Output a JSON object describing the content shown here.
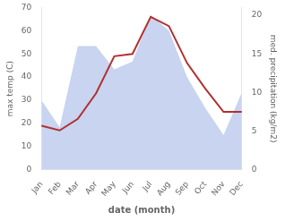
{
  "chart_data": {
    "type": "line",
    "xlabel": "date (month)",
    "ylabel": "max temp (C)",
    "y2label": "med. precipitation (kg/m2)",
    "categories": [
      "Jan",
      "Feb",
      "Mar",
      "Apr",
      "May",
      "Jun",
      "Jul",
      "Aug",
      "Sep",
      "Oct",
      "Nov",
      "Dec"
    ],
    "series": [
      {
        "type": "area",
        "color": "#c8d4f0",
        "axis": "y2",
        "values": [
          9,
          5.5,
          16,
          16,
          13,
          14,
          20,
          18,
          12,
          8,
          4.5,
          10
        ]
      },
      {
        "type": "line",
        "color": "#b03030",
        "values": [
          19,
          17,
          22,
          33,
          49,
          50,
          66,
          62,
          46,
          35,
          25,
          25
        ]
      }
    ],
    "ylim": [
      0,
      70
    ],
    "yticks": [
      0,
      10,
      20,
      30,
      40,
      50,
      60,
      70
    ],
    "y2lim": [
      0,
      21
    ],
    "y2ticks": [
      0,
      5,
      10,
      15,
      20
    ],
    "grid": false
  }
}
